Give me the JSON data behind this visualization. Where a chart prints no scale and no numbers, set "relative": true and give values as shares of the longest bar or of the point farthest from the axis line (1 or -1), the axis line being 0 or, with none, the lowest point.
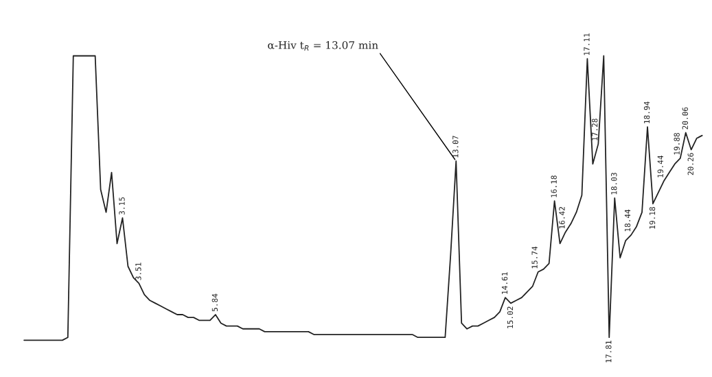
{
  "chart_data": {
    "type": "line",
    "relative": true,
    "legend": false,
    "marker": "none",
    "line_style": "solid",
    "categories": [
      null,
      null,
      null,
      null,
      null,
      null,
      null,
      null,
      null,
      null,
      null,
      null,
      null,
      null,
      null,
      null,
      null,
      null,
      null,
      null,
      null,
      null,
      null,
      null,
      null,
      null,
      null,
      null,
      null,
      null,
      null,
      null,
      null,
      null,
      null,
      null,
      null,
      null,
      null,
      null,
      null,
      null,
      null,
      null,
      null,
      null,
      null,
      null,
      null,
      null,
      null,
      null,
      null,
      null,
      null,
      null,
      null,
      null,
      null,
      null,
      null,
      null,
      null,
      null,
      null,
      null,
      null,
      null,
      null,
      null,
      null,
      null,
      null,
      null,
      null,
      null,
      null,
      null,
      null,
      null,
      null,
      null,
      null,
      null,
      null,
      null,
      null,
      null,
      null,
      null,
      null,
      null,
      null,
      null,
      null,
      null,
      null,
      null,
      null,
      null,
      null,
      null,
      null,
      null,
      null,
      null,
      null,
      null,
      null,
      null,
      null,
      null,
      null,
      null,
      null,
      null,
      null,
      null,
      null,
      null,
      null,
      null,
      null,
      null,
      null
    ],
    "series": [
      {
        "color": "#222222",
        "values": [
          0.0,
          0.0,
          0.0,
          0.0,
          0.0,
          0.0,
          0.0,
          0.0,
          0.01,
          1.0,
          1.0,
          1.0,
          1.0,
          1.0,
          0.53,
          0.45,
          0.59,
          0.34,
          0.43,
          0.26,
          0.22,
          0.2,
          0.16,
          0.14,
          0.13,
          0.12,
          0.11,
          0.1,
          0.09,
          0.09,
          0.08,
          0.08,
          0.07,
          0.07,
          0.07,
          0.09,
          0.06,
          0.05,
          0.05,
          0.05,
          0.04,
          0.04,
          0.04,
          0.04,
          0.03,
          0.03,
          0.03,
          0.03,
          0.03,
          0.03,
          0.03,
          0.03,
          0.03,
          0.02,
          0.02,
          0.02,
          0.02,
          0.02,
          0.02,
          0.02,
          0.02,
          0.02,
          0.02,
          0.02,
          0.02,
          0.02,
          0.02,
          0.02,
          0.02,
          0.02,
          0.02,
          0.02,
          0.01,
          0.01,
          0.01,
          0.01,
          0.01,
          0.01,
          0.3,
          0.63,
          0.06,
          0.04,
          0.05,
          0.05,
          0.06,
          0.07,
          0.08,
          0.1,
          0.15,
          0.13,
          0.14,
          0.15,
          0.17,
          0.19,
          0.24,
          0.25,
          0.27,
          0.49,
          0.34,
          0.38,
          0.41,
          0.45,
          0.51,
          0.99,
          0.62,
          0.69,
          1.0,
          0.01,
          0.5,
          0.29,
          0.35,
          0.37,
          0.4,
          0.45,
          0.75,
          0.48,
          0.52,
          0.56,
          0.59,
          0.62,
          0.64,
          0.73,
          0.67,
          0.71,
          0.72
        ]
      }
    ],
    "annotations": [
      "α-Hiv t$_{R}$ = 13.07 min",
      {
        "text": "3.15",
        "y": 0.43
      },
      {
        "text": "3.51",
        "y": 0.2
      },
      {
        "text": "5.84",
        "y": 0.09
      },
      {
        "text": "13.07",
        "y": 0.63
      },
      {
        "text": "14.61",
        "y": 0.15
      },
      {
        "text": "15.02",
        "y": 0.13
      },
      {
        "text": "15.74",
        "y": 0.24
      },
      {
        "text": "16.18",
        "y": 0.49
      },
      {
        "text": "16.42",
        "y": 0.38
      },
      {
        "text": "17.11",
        "y": 0.99
      },
      {
        "text": "17.28",
        "y": 0.69
      },
      {
        "text": "17.81",
        "y": 0.01
      },
      {
        "text": "18.03",
        "y": 0.5
      },
      {
        "text": "18.44",
        "y": 0.37
      },
      {
        "text": "18.94",
        "y": 0.75
      },
      {
        "text": "19.18",
        "y": 0.48
      },
      {
        "text": "19.44",
        "y": 0.56
      },
      {
        "text": "19.88",
        "y": 0.64
      },
      {
        "text": "20.06",
        "y": 0.73
      },
      {
        "text": "20.26",
        "y": 0.67
      }
    ]
  }
}
